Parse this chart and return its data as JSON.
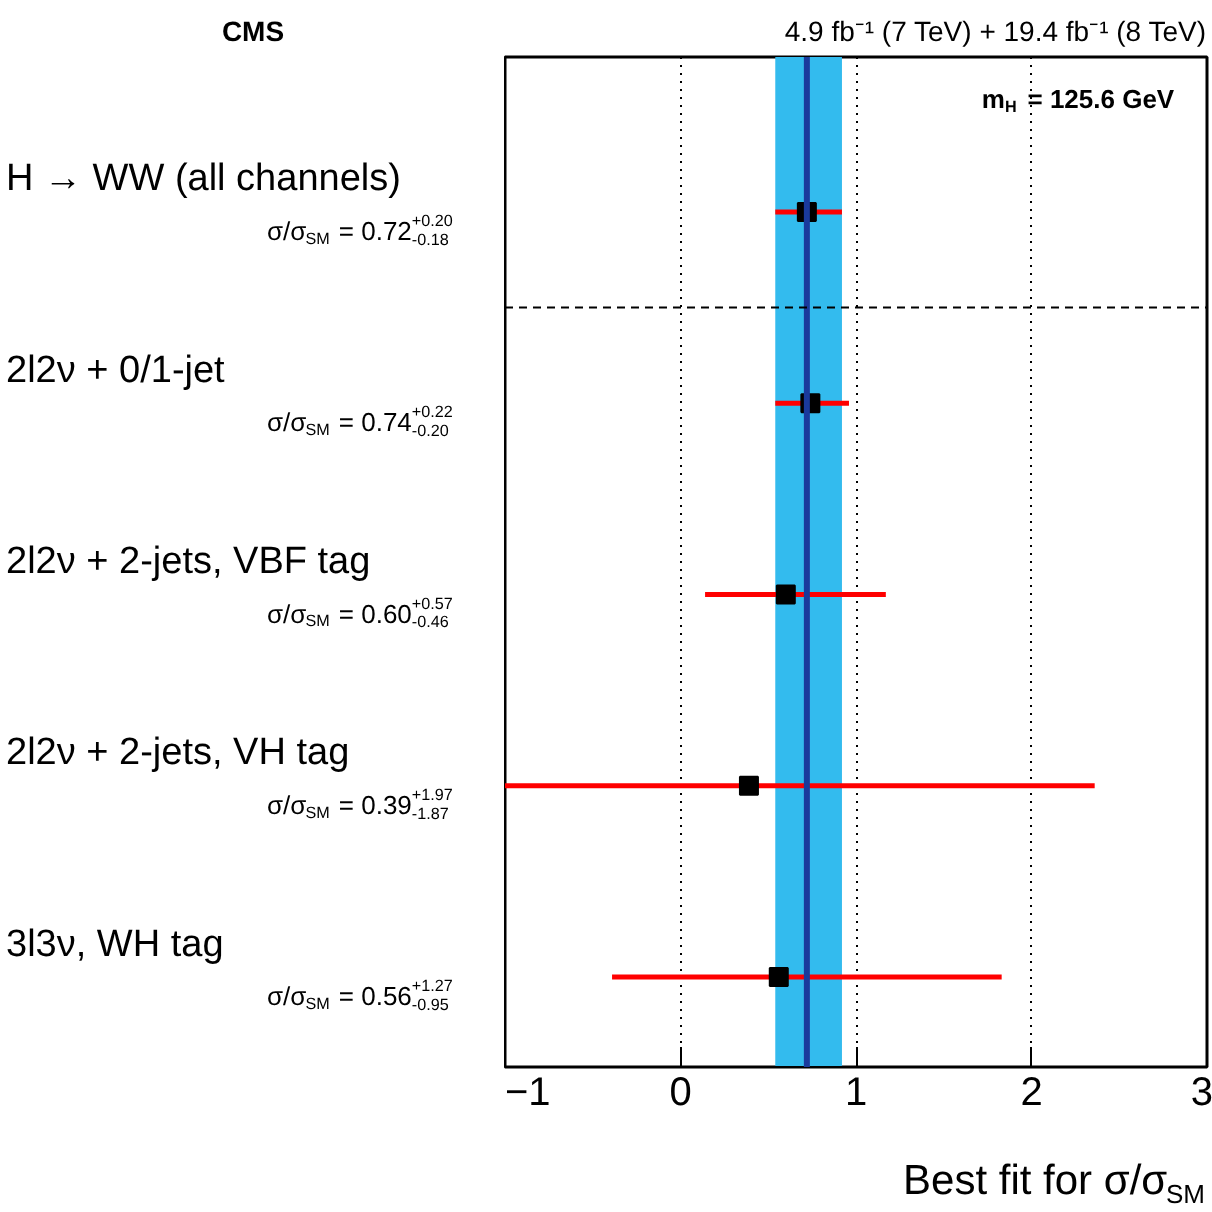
{
  "chart_data": {
    "type": "scatter",
    "orientation": "horizontal",
    "title": "CMS",
    "subtitle": "4.9 fb⁻¹ (7 TeV) + 19.4 fb⁻¹ (8 TeV)",
    "xlabel": "Best fit for σ/σ$_{SM}$",
    "annotations": [
      "m$_{H}$ = 125.6 GeV"
    ],
    "categories": [
      "H → WW (all channels)",
      "2l2ν + 0/1-jet",
      "2l2ν + 2-jets, VBF tag",
      "2l2ν + 2-jets, VH tag",
      "3l3ν, WH tag"
    ],
    "values": [
      0.72,
      0.74,
      0.6,
      0.39,
      0.56
    ],
    "errors": [
      [
        0.54,
        0.92
      ],
      [
        0.54,
        0.96
      ],
      [
        0.14,
        1.17
      ],
      [
        -1.48,
        2.36
      ],
      [
        -0.39,
        1.83
      ]
    ],
    "value_labels": [
      "σ/σ$_{SM}$ = 0.72$^{+0.20}$$_{-0.18}$",
      "σ/σ$_{SM}$ = 0.74$^{+0.22}$$_{-0.20}$",
      "σ/σ$_{SM}$ = 0.60$^{+0.57}$$_{-0.46}$",
      "σ/σ$_{SM}$ = 0.39$^{+1.97}$$_{-1.87}$",
      "σ/σ$_{SM}$ = 0.56$^{+1.27}$$_{-0.95}$"
    ],
    "color": "#000000",
    "marker": "square",
    "xlim": [
      -1,
      3
    ],
    "xticks": [
      -1,
      0,
      1,
      2,
      3
    ],
    "grid": "x",
    "ref_lines": [
      {
        "axis": "x",
        "value": 0.72,
        "color": "#1a3a9c",
        "line_style": "solid"
      }
    ],
    "bands": [
      {
        "axis": "x",
        "from": 0.54,
        "to": 0.92,
        "color": "#33bbee"
      }
    ]
  }
}
